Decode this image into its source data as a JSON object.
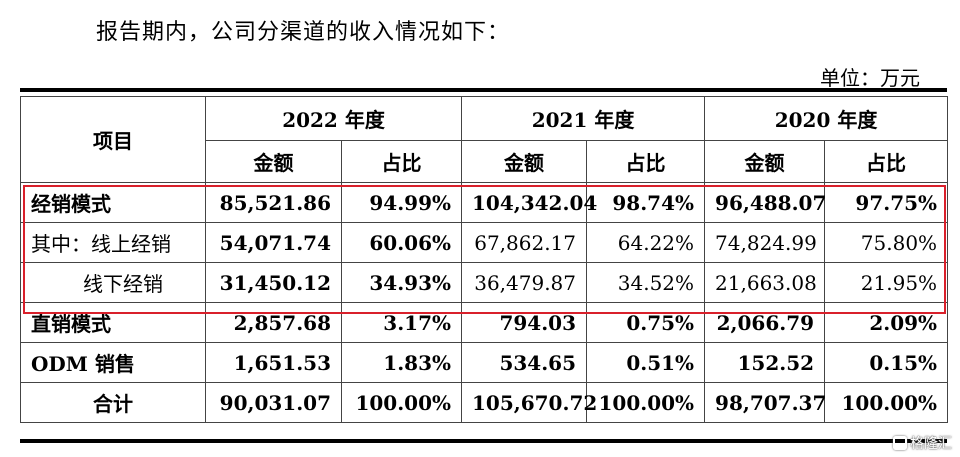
{
  "intro": "报告期内，公司分渠道的收入情况如下：",
  "unit": "单位：万元",
  "table": {
    "item_header": "项目",
    "years": [
      "2022 年度",
      "2021 年度",
      "2020 年度"
    ],
    "amount_label": "金额",
    "ratio_label": "占比",
    "rows": [
      {
        "label": "经销模式",
        "values": [
          "85,521.86",
          "94.99%",
          "104,342.04",
          "98.74%",
          "96,488.07",
          "97.75%"
        ]
      },
      {
        "label": "其中：线上经销",
        "values": [
          "54,071.74",
          "60.06%",
          "67,862.17",
          "64.22%",
          "74,824.99",
          "75.80%"
        ]
      },
      {
        "label": "线下经销",
        "values": [
          "31,450.12",
          "34.93%",
          "36,479.87",
          "34.52%",
          "21,663.08",
          "21.95%"
        ]
      },
      {
        "label": "直销模式",
        "values": [
          "2,857.68",
          "3.17%",
          "794.03",
          "0.75%",
          "2,066.79",
          "2.09%"
        ]
      },
      {
        "label": "ODM 销售",
        "values": [
          "1,651.53",
          "1.83%",
          "534.65",
          "0.51%",
          "152.52",
          "0.15%"
        ]
      },
      {
        "label": "合计",
        "values": [
          "90,031.07",
          "100.00%",
          "105,670.72",
          "100.00%",
          "98,707.37",
          "100.00%"
        ]
      }
    ]
  },
  "highlight_color": "#d9202b",
  "watermark": "格隆汇"
}
